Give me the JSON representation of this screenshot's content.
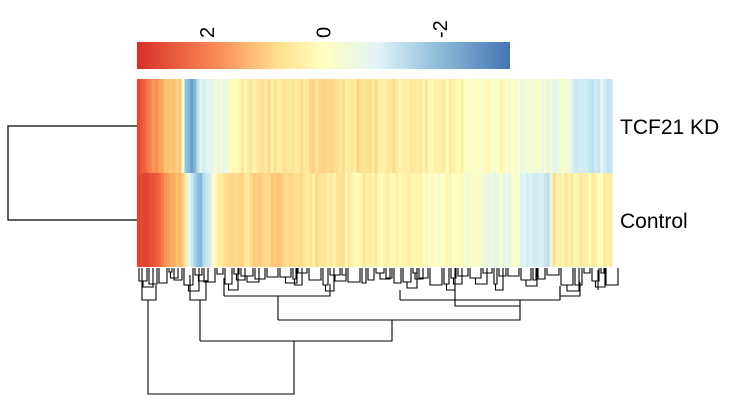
{
  "chart_data": {
    "type": "heatmap",
    "title": "",
    "rows": [
      "TCF21 KD",
      "Control"
    ],
    "color_key": {
      "ticks": [
        2,
        0,
        -2
      ],
      "tick_labels": [
        "2",
        "0",
        "-2"
      ],
      "range": [
        3.2,
        -3.2
      ],
      "colors": {
        "high": "#d73027",
        "mid": "#ffffbf",
        "low": "#4575b4"
      }
    },
    "row_dendrogram": true,
    "column_dendrogram": true,
    "column_count": 160,
    "value_profiles": {
      "TCF21 KD": [
        [
          0.0,
          2.9
        ],
        [
          0.01,
          2.2
        ],
        [
          0.025,
          1.7
        ],
        [
          0.045,
          1.2
        ],
        [
          0.07,
          0.9
        ],
        [
          0.09,
          0.8
        ],
        [
          0.1,
          -1.5
        ],
        [
          0.115,
          -2.2
        ],
        [
          0.13,
          -0.6
        ],
        [
          0.15,
          -0.4
        ],
        [
          0.18,
          -0.3
        ],
        [
          0.2,
          0.1
        ],
        [
          0.25,
          0.4
        ],
        [
          0.32,
          0.5
        ],
        [
          0.4,
          0.55
        ],
        [
          0.45,
          0.45
        ],
        [
          0.5,
          0.4
        ],
        [
          0.55,
          0.35
        ],
        [
          0.6,
          0.25
        ],
        [
          0.65,
          0.15
        ],
        [
          0.7,
          0.1
        ],
        [
          0.75,
          0.0
        ],
        [
          0.8,
          -0.15
        ],
        [
          0.85,
          -0.25
        ],
        [
          0.9,
          -0.3
        ],
        [
          0.93,
          -0.6
        ],
        [
          0.96,
          -0.9
        ],
        [
          0.98,
          -0.6
        ],
        [
          1.0,
          -0.8
        ]
      ],
      "Control": [
        [
          0.0,
          3.0
        ],
        [
          0.01,
          2.7
        ],
        [
          0.03,
          2.4
        ],
        [
          0.05,
          1.8
        ],
        [
          0.08,
          1.1
        ],
        [
          0.1,
          0.6
        ],
        [
          0.11,
          -0.8
        ],
        [
          0.13,
          -1.8
        ],
        [
          0.15,
          -0.7
        ],
        [
          0.17,
          0.4
        ],
        [
          0.2,
          0.5
        ],
        [
          0.25,
          0.6
        ],
        [
          0.3,
          0.8
        ],
        [
          0.35,
          0.5
        ],
        [
          0.4,
          0.35
        ],
        [
          0.5,
          0.2
        ],
        [
          0.6,
          0.05
        ],
        [
          0.7,
          -0.1
        ],
        [
          0.75,
          -0.2
        ],
        [
          0.8,
          -0.3
        ],
        [
          0.85,
          -0.7
        ],
        [
          0.87,
          -1.0
        ],
        [
          0.88,
          0.3
        ],
        [
          0.92,
          0.2
        ],
        [
          1.0,
          0.15
        ]
      ]
    }
  }
}
